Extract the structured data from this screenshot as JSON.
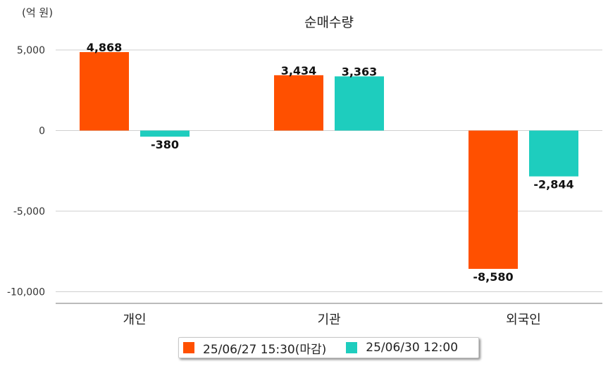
{
  "chart_data": {
    "type": "bar",
    "title": "순매수량",
    "unit_label": "(억 원)",
    "categories": [
      "개인",
      "기관",
      "외국인"
    ],
    "series": [
      {
        "name": "25/06/27 15:30(마감)",
        "color": "#FF5000",
        "values": [
          4868,
          3434,
          -8580
        ],
        "labels": [
          "4,868",
          "3,434",
          "-8,580"
        ]
      },
      {
        "name": "25/06/30 12:00",
        "color": "#1ECDBE",
        "values": [
          -380,
          3363,
          -2844
        ],
        "labels": [
          "-380",
          "3,363",
          "-2,844"
        ]
      }
    ],
    "yticks": [
      5000,
      0,
      -5000,
      -10000
    ],
    "ytick_labels": [
      "5,000",
      "0",
      "-5,000",
      "-10,000"
    ],
    "ylim": [
      -10000,
      5000
    ],
    "grid": true,
    "legend_position": "bottom"
  }
}
